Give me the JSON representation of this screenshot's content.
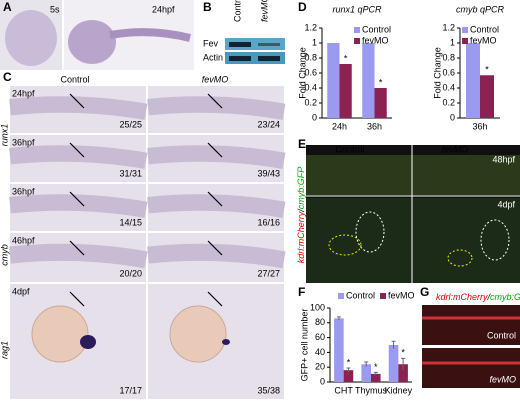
{
  "panels": {
    "A": {
      "label": "A",
      "stages": [
        "5s",
        "24hpf"
      ]
    },
    "B": {
      "label": "B",
      "columns": [
        "Control",
        "fevMO"
      ],
      "rows": [
        "Fev",
        "Actin"
      ]
    },
    "C": {
      "label": "C",
      "columns": [
        "Control",
        "fevMO"
      ],
      "genes": [
        "runx1",
        "cmyb",
        "rag1"
      ],
      "stages": [
        "24hpf",
        "36hpf",
        "36hpf",
        "46hpf",
        "4dpf"
      ],
      "counts": [
        [
          "25/25",
          "23/24"
        ],
        [
          "31/31",
          "39/43"
        ],
        [
          "14/15",
          "16/16"
        ],
        [
          "20/20",
          "27/27"
        ],
        [
          "17/17",
          "35/38"
        ]
      ]
    },
    "D": {
      "label": "D"
    },
    "E": {
      "label": "E",
      "columns": [
        "Control",
        "fevMO"
      ],
      "stages": [
        "48hpf",
        "4dpf"
      ],
      "legend": [
        "kdrl:mCherry",
        "/",
        "cmyb:GFP"
      ]
    },
    "F": {
      "label": "F"
    },
    "G": {
      "label": "G",
      "legend": [
        "kdrl:mCherry",
        "/",
        "cmyb:GFP"
      ],
      "rows": [
        "Control",
        "fevMO"
      ]
    }
  },
  "chart_data": [
    {
      "type": "bar",
      "title": "runx1 qPCR",
      "y_label": "Fold Change",
      "categories": [
        "24h",
        "36h"
      ],
      "series": [
        {
          "name": "Control",
          "color": "#9a9af0",
          "values": [
            1,
            1
          ]
        },
        {
          "name": "fevMO",
          "color": "#8b2252",
          "values": [
            0.72,
            0.4
          ]
        }
      ],
      "annotations": [
        "*",
        "*"
      ],
      "ylim": [
        0,
        1.2
      ],
      "yticks": [
        0,
        0.2,
        0.4,
        0.6,
        0.8,
        1,
        1.2
      ],
      "legend": "upper right"
    },
    {
      "type": "bar",
      "title": "cmyb qPCR",
      "y_label": "Fold Change",
      "categories": [
        "36h"
      ],
      "series": [
        {
          "name": "Control",
          "color": "#9a9af0",
          "values": [
            1
          ]
        },
        {
          "name": "fevMO",
          "color": "#8b2252",
          "values": [
            0.57
          ]
        }
      ],
      "annotations": [
        "*"
      ],
      "ylim": [
        0,
        1.2
      ],
      "yticks": [
        0,
        0.2,
        0.4,
        0.6,
        0.8,
        1,
        1.2
      ],
      "legend": "upper right"
    },
    {
      "type": "bar",
      "y_label": "GFP+ cell number",
      "categories": [
        "CHT",
        "Thymus",
        "Kidney"
      ],
      "series": [
        {
          "name": "Control",
          "color": "#9a9af0",
          "values": [
            86,
            24,
            50
          ],
          "errors": [
            2,
            3,
            5
          ]
        },
        {
          "name": "fevMO",
          "color": "#8b2252",
          "values": [
            16,
            11,
            24
          ],
          "errors": [
            3,
            2,
            8
          ]
        }
      ],
      "annotations": [
        "*",
        "*",
        "*"
      ],
      "ylim": [
        0,
        100
      ],
      "yticks": [
        0,
        20,
        40,
        60,
        80,
        100
      ],
      "legend": "top"
    }
  ]
}
